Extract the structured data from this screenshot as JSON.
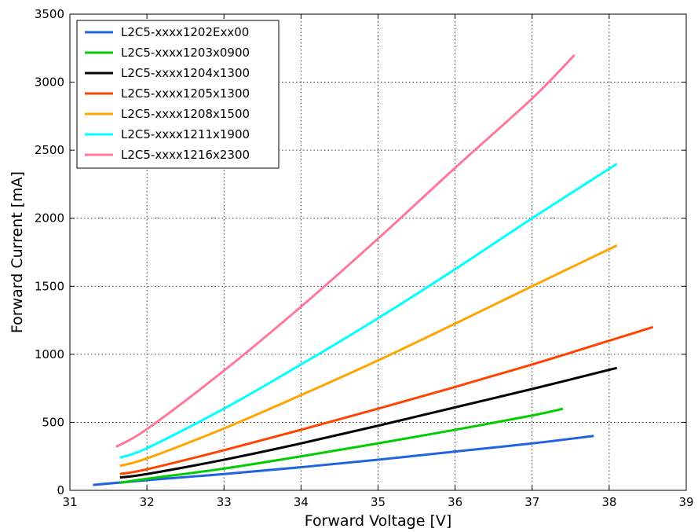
{
  "chart_data": {
    "type": "line",
    "title": "",
    "xlabel": "Forward Voltage [V]",
    "ylabel": "Forward Current [mA]",
    "xlim": [
      31,
      39
    ],
    "ylim": [
      0,
      3500
    ],
    "xticks": [
      31,
      32,
      33,
      34,
      35,
      36,
      37,
      38,
      39
    ],
    "yticks": [
      0,
      500,
      1000,
      1500,
      2000,
      2500,
      3000,
      3500
    ],
    "grid": true,
    "legend_position": "top-left",
    "series": [
      {
        "name": "L2C5-xxxx1202Exx00",
        "color": "#1f63e0",
        "points": [
          [
            31.3,
            40
          ],
          [
            32.0,
            75
          ],
          [
            33.0,
            120
          ],
          [
            34.0,
            170
          ],
          [
            35.0,
            225
          ],
          [
            36.0,
            285
          ],
          [
            37.0,
            345
          ],
          [
            37.8,
            400
          ]
        ]
      },
      {
        "name": "L2C5-xxxx1203x0900",
        "color": "#00cc00",
        "points": [
          [
            31.65,
            55
          ],
          [
            32.0,
            85
          ],
          [
            33.0,
            160
          ],
          [
            34.0,
            250
          ],
          [
            35.0,
            345
          ],
          [
            36.0,
            445
          ],
          [
            37.0,
            550
          ],
          [
            37.4,
            600
          ]
        ]
      },
      {
        "name": "L2C5-xxxx1204x1300",
        "color": "#000000",
        "points": [
          [
            31.65,
            95
          ],
          [
            32.0,
            120
          ],
          [
            33.0,
            225
          ],
          [
            34.0,
            345
          ],
          [
            35.0,
            475
          ],
          [
            36.0,
            610
          ],
          [
            37.0,
            745
          ],
          [
            38.1,
            900
          ]
        ]
      },
      {
        "name": "L2C5-xxxx1205x1300",
        "color": "#ff4400",
        "points": [
          [
            31.65,
            120
          ],
          [
            32.0,
            155
          ],
          [
            33.0,
            295
          ],
          [
            34.0,
            445
          ],
          [
            35.0,
            600
          ],
          [
            36.0,
            760
          ],
          [
            37.0,
            925
          ],
          [
            38.0,
            1100
          ],
          [
            38.57,
            1200
          ]
        ]
      },
      {
        "name": "L2C5-xxxx1208x1500",
        "color": "#ffa500",
        "points": [
          [
            31.65,
            180
          ],
          [
            32.0,
            235
          ],
          [
            33.0,
            455
          ],
          [
            34.0,
            700
          ],
          [
            35.0,
            955
          ],
          [
            36.0,
            1225
          ],
          [
            37.0,
            1500
          ],
          [
            38.1,
            1800
          ]
        ]
      },
      {
        "name": "L2C5-xxxx1211x1900",
        "color": "#00ffff",
        "points": [
          [
            31.65,
            240
          ],
          [
            32.0,
            310
          ],
          [
            33.0,
            600
          ],
          [
            34.0,
            925
          ],
          [
            35.0,
            1265
          ],
          [
            36.0,
            1625
          ],
          [
            37.0,
            2000
          ],
          [
            38.1,
            2400
          ]
        ]
      },
      {
        "name": "L2C5-xxxx1216x2300",
        "color": "#ff7799",
        "points": [
          [
            31.6,
            320
          ],
          [
            32.0,
            450
          ],
          [
            33.0,
            880
          ],
          [
            34.0,
            1350
          ],
          [
            35.0,
            1850
          ],
          [
            36.0,
            2370
          ],
          [
            37.0,
            2880
          ],
          [
            37.55,
            3200
          ]
        ]
      }
    ]
  }
}
